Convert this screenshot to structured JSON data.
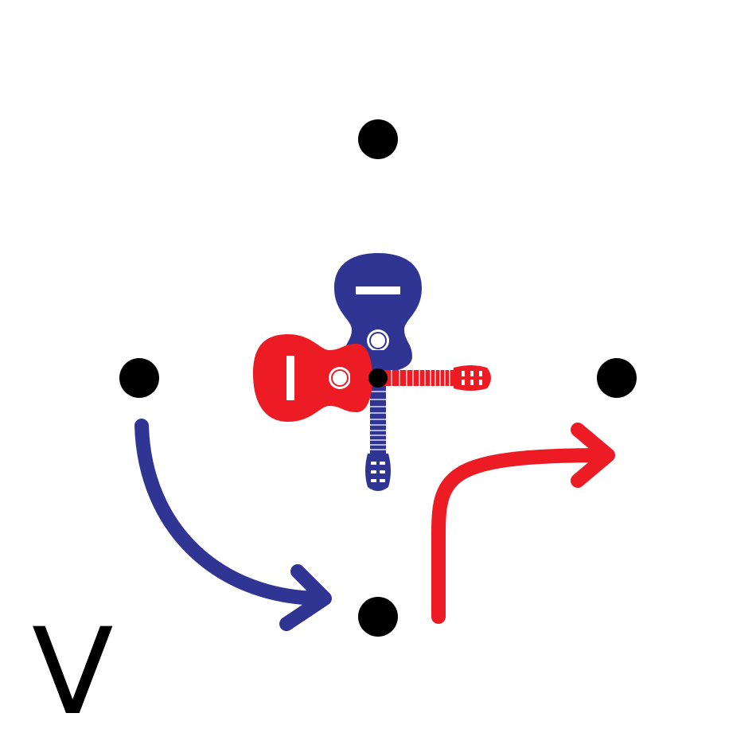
{
  "diagram": {
    "label": "V",
    "colors": {
      "background": "#ffffff",
      "dot": "#000000",
      "blue": "#303593",
      "red": "#ed1c24",
      "white": "#ffffff"
    },
    "dots": [
      "top",
      "left",
      "center",
      "right",
      "bottom"
    ],
    "guitars": [
      {
        "name": "blue-guitar",
        "color": "blue",
        "orientation": "vertical"
      },
      {
        "name": "red-guitar",
        "color": "red",
        "orientation": "horizontal"
      }
    ],
    "arrows": [
      {
        "name": "blue-curved-arrow",
        "color": "blue",
        "from": "left",
        "to": "bottom"
      },
      {
        "name": "red-bent-arrow",
        "color": "red",
        "from": "bottom",
        "to": "right"
      }
    ]
  }
}
